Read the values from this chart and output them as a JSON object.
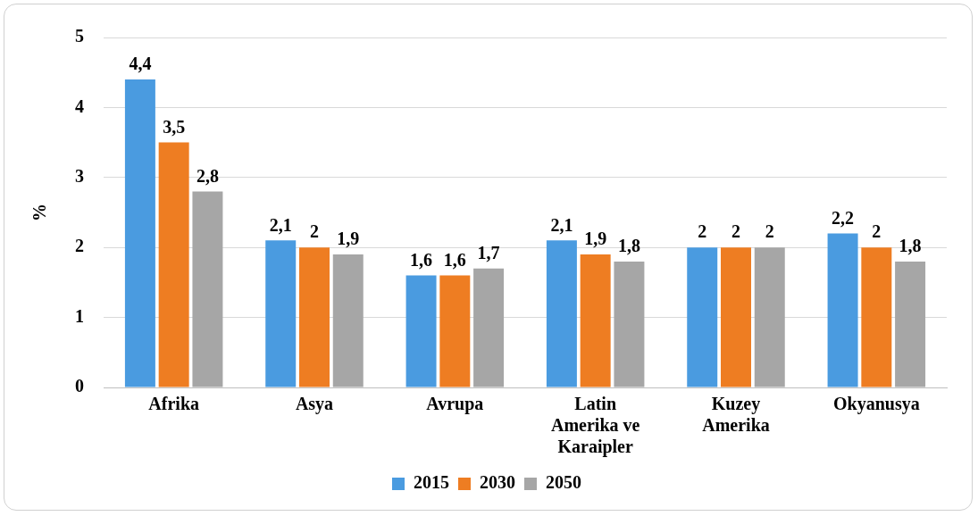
{
  "chart_data": {
    "type": "bar",
    "ylabel": "%",
    "categories": [
      "Afrika",
      "Asya",
      "Avrupa",
      "Latin Amerika ve Karaipler",
      "Kuzey Amerika",
      "Okyanusya"
    ],
    "series": [
      {
        "name": "2015",
        "color": "#4a9be0",
        "values": [
          4.4,
          2.1,
          1.6,
          2.1,
          2,
          2.2
        ],
        "value_labels": [
          "4,4",
          "2,1",
          "1,6",
          "2,1",
          "2",
          "2,2"
        ]
      },
      {
        "name": "2030",
        "color": "#ee7d22",
        "values": [
          3.5,
          2,
          1.6,
          1.9,
          2,
          2
        ],
        "value_labels": [
          "3,5",
          "2",
          "1,6",
          "1,9",
          "2",
          "2"
        ]
      },
      {
        "name": "2050",
        "color": "#a6a6a6",
        "values": [
          2.8,
          1.9,
          1.7,
          1.8,
          2,
          1.8
        ],
        "value_labels": [
          "2,8",
          "1,9",
          "1,7",
          "1,8",
          "2",
          "1,8"
        ]
      }
    ],
    "ylim": [
      0,
      5
    ],
    "yticks": [
      0,
      1,
      2,
      3,
      4,
      5
    ],
    "grid": "y",
    "legend": "bottom"
  }
}
